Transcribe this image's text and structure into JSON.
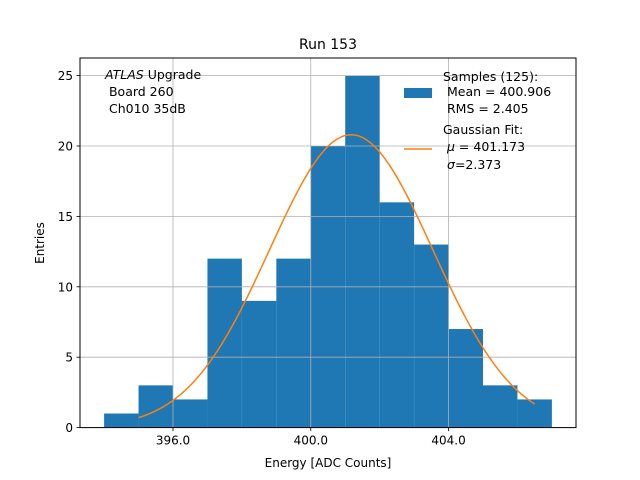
{
  "chart_data": {
    "type": "histogram",
    "title": "Run 153",
    "xlabel": "Energy [ADC Counts]",
    "ylabel": "Entries",
    "xlim": [
      393.3,
      407.7
    ],
    "ylim": [
      0,
      26.25
    ],
    "grid": true,
    "xticks": [
      396.0,
      400.0,
      404.0
    ],
    "xtick_labels": [
      "396.0",
      "400.0",
      "404.0"
    ],
    "yticks": [
      0,
      5,
      10,
      15,
      20,
      25
    ],
    "ytick_labels": [
      "0",
      "5",
      "10",
      "15",
      "20",
      "25"
    ],
    "bin_edges": [
      394,
      395,
      396,
      397,
      398,
      399,
      400,
      401,
      402,
      403,
      404,
      405,
      406,
      407
    ],
    "counts": [
      1,
      3,
      2,
      12,
      9,
      12,
      20,
      25,
      16,
      13,
      7,
      3,
      2
    ],
    "bar_color": "#1f77b4",
    "fit": {
      "mu": 401.173,
      "sigma": 2.373,
      "amplitude": 20.8,
      "x_range": [
        395.0,
        406.5
      ],
      "color": "#ff7f0e"
    },
    "annotation": {
      "italic": "ATLAS",
      "line1_rest": " Upgrade",
      "line2": " Board 260",
      "line3": " Ch010 35dB"
    },
    "legend": {
      "position": "upper right",
      "hist_lines": [
        "Samples (125):",
        " Mean = 400.906",
        " RMS = 2.405"
      ],
      "fit_line1": "Gaussian Fit:",
      "fit_mu_sym": "μ",
      "fit_mu_val": " = 401.173",
      "fit_sigma_sym": "σ",
      "fit_sigma_val": "=2.373"
    }
  }
}
